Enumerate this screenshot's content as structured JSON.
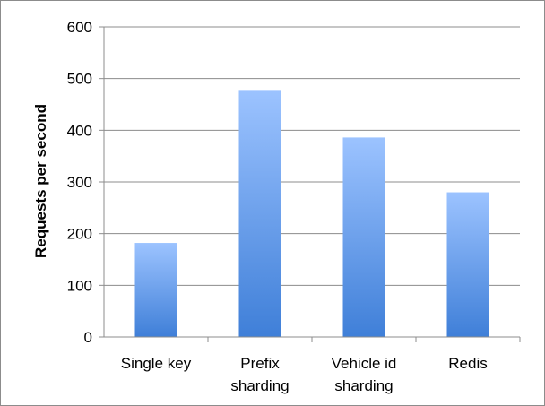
{
  "chart_data": {
    "type": "bar",
    "title": "",
    "xlabel": "",
    "ylabel": "Requests per second",
    "categories": [
      [
        "Single key"
      ],
      [
        "Prefix",
        "sharding"
      ],
      [
        "Vehicle id",
        "sharding"
      ],
      [
        "Redis"
      ]
    ],
    "values": [
      182,
      478,
      386,
      280
    ],
    "ylim": [
      0,
      600
    ],
    "yticks": [
      "0",
      "100",
      "200",
      "300",
      "400",
      "500",
      "600"
    ],
    "grid": true,
    "legend": "none",
    "colors": {
      "bar_top": "#9cc3ff",
      "bar_bottom": "#3f7fd8",
      "grid": "#8c8c8c",
      "axis": "#8c8c8c"
    }
  }
}
